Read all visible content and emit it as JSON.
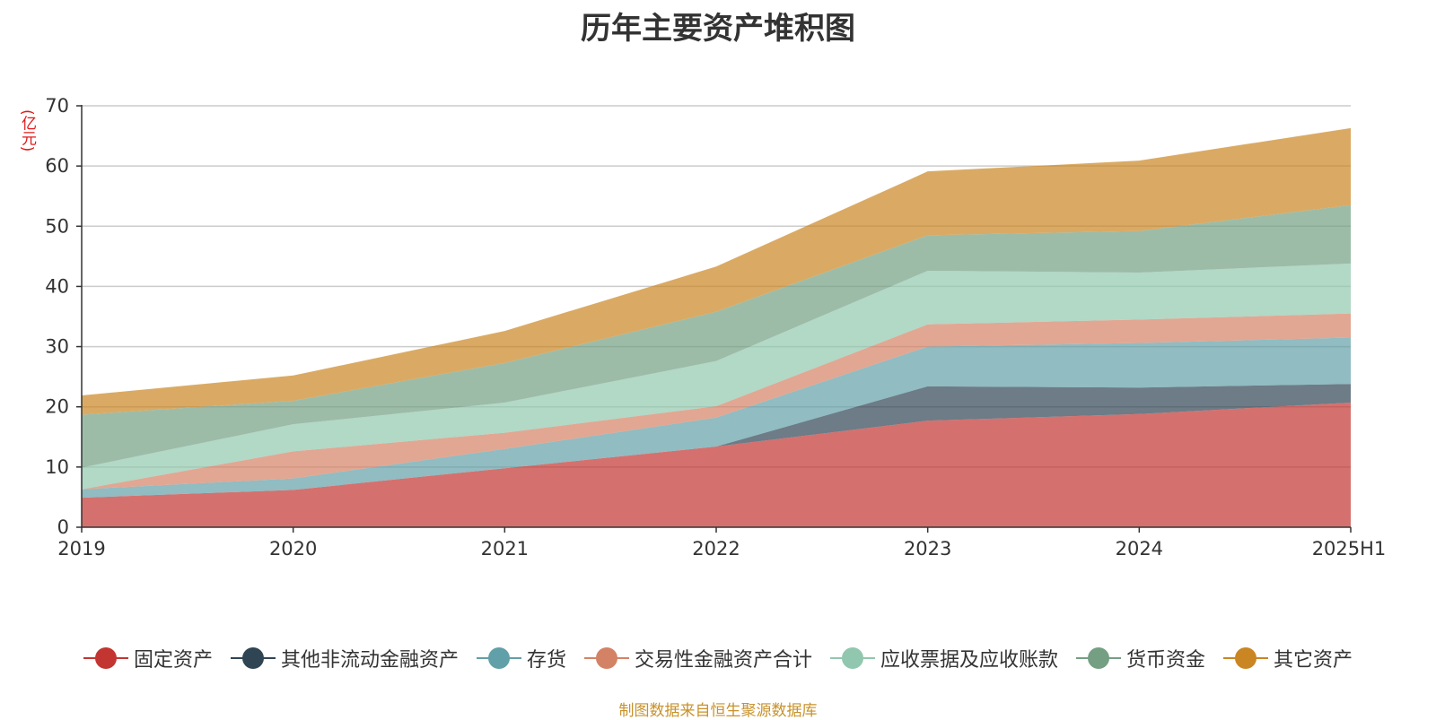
{
  "colors": {
    "fixed_assets": "#c23531",
    "other_noncurrent_fin": "#2f4554",
    "inventory": "#61a0a8",
    "trading_fin": "#d48265",
    "receivables": "#91c7ae",
    "cash": "#749f83",
    "other_assets": "#ca8622",
    "unit": "#e0191a",
    "source": "#c8922a"
  },
  "chart_data": {
    "type": "area",
    "stacked": true,
    "title": "历年主要资产堆积图",
    "ylabel": "(亿元)",
    "ylim": [
      0,
      70
    ],
    "yticks": [
      0,
      10,
      20,
      30,
      40,
      50,
      60,
      70
    ],
    "grid": true,
    "legend_position": "bottom",
    "source": "制图数据来自恒生聚源数据库",
    "categories": [
      "2019",
      "2020",
      "2021",
      "2022",
      "2023",
      "2024",
      "2025H1"
    ],
    "series": [
      {
        "name": "固定资产",
        "color_key": "fixed_assets",
        "values": [
          4.9,
          6.2,
          9.8,
          13.4,
          17.7,
          18.8,
          20.7
        ]
      },
      {
        "name": "其他非流动金融资产",
        "color_key": "other_noncurrent_fin",
        "values": [
          0,
          0,
          0,
          0,
          5.7,
          4.4,
          3.1
        ]
      },
      {
        "name": "存货",
        "color_key": "inventory",
        "values": [
          1.4,
          1.9,
          3.2,
          4.8,
          6.6,
          7.4,
          7.7
        ]
      },
      {
        "name": "交易性金融资产合计",
        "color_key": "trading_fin",
        "values": [
          0,
          4.5,
          2.7,
          1.9,
          3.7,
          3.9,
          4.0
        ]
      },
      {
        "name": "应收票据及应收账款",
        "color_key": "receivables",
        "values": [
          3.6,
          4.5,
          5.0,
          7.5,
          8.9,
          7.8,
          8.3
        ]
      },
      {
        "name": "货币资金",
        "color_key": "cash",
        "values": [
          8.8,
          3.9,
          6.6,
          8.2,
          5.9,
          6.9,
          9.7
        ]
      },
      {
        "name": "其它资产",
        "color_key": "other_assets",
        "values": [
          3.2,
          4.2,
          5.3,
          7.5,
          10.6,
          11.7,
          12.8
        ]
      }
    ]
  }
}
